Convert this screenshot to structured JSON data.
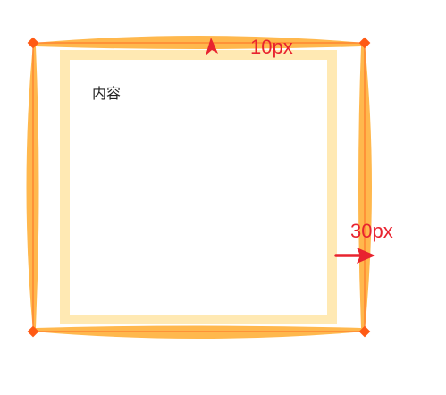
{
  "content_text": "内容",
  "top_measure": "10px",
  "right_measure": "30px",
  "colors": {
    "outer_shape": "#ffb84d",
    "outer_outline": "#ff7a2a",
    "corner_handle": "#ff5a14",
    "inner_border": "#ffe9b3",
    "arrow": "#e8232f",
    "text": "#222222"
  }
}
